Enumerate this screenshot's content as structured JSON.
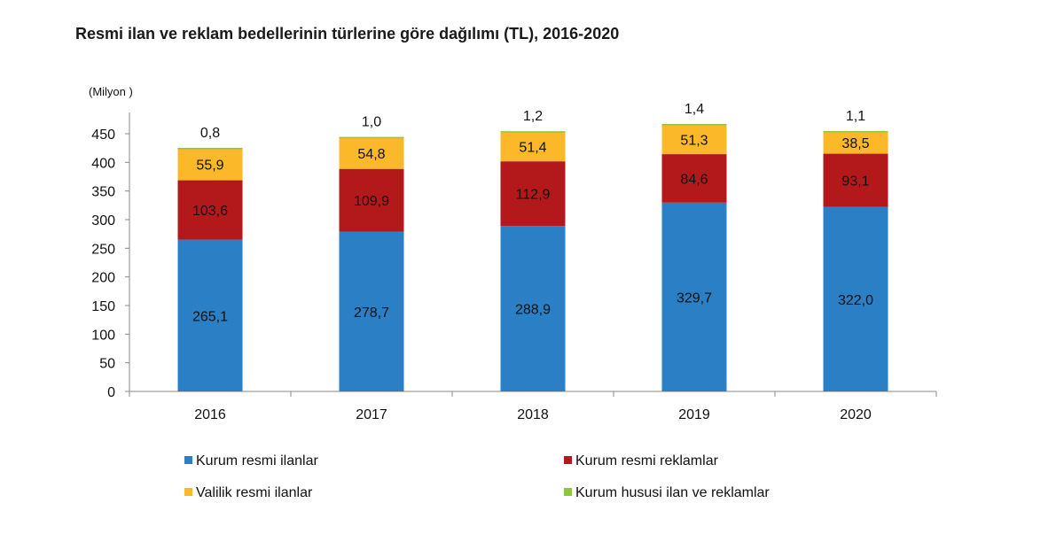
{
  "chart_data": {
    "type": "bar",
    "stacked": true,
    "title": "Resmi ilan ve reklam bedellerinin türlerine göre dağılımı (TL), 2016-2020",
    "ylabel": "(Milyon )",
    "xlabel": "",
    "ylim": [
      0,
      450
    ],
    "yticks": [
      0,
      50,
      100,
      150,
      200,
      250,
      300,
      350,
      400,
      450
    ],
    "categories": [
      "2016",
      "2017",
      "2018",
      "2019",
      "2020"
    ],
    "series": [
      {
        "name": "Kurum resmi ilanlar",
        "color": "#2a7fc5",
        "values": [
          265.1,
          278.7,
          288.9,
          329.7,
          322.0
        ],
        "labels": [
          "265,1",
          "278,7",
          "288,9",
          "329,7",
          "322,0"
        ]
      },
      {
        "name": "Kurum resmi reklamlar",
        "color": "#b3191b",
        "values": [
          103.6,
          109.9,
          112.9,
          84.6,
          93.1
        ],
        "labels": [
          "103,6",
          "109,9",
          "112,9",
          "84,6",
          "93,1"
        ]
      },
      {
        "name": "Valilik resmi ilanlar",
        "color": "#fbb829",
        "values": [
          55.9,
          54.8,
          51.4,
          51.3,
          38.5
        ],
        "labels": [
          "55,9",
          "54,8",
          "51,4",
          "51,3",
          "38,5"
        ]
      },
      {
        "name": "Kurum hususi ilan ve reklamlar",
        "color": "#8dc63f",
        "values": [
          0.8,
          1.0,
          1.2,
          1.4,
          1.1
        ],
        "labels": [
          "0,8",
          "1,0",
          "1,2",
          "1,4",
          "1,1"
        ]
      }
    ],
    "grid": false,
    "legend_position": "bottom"
  }
}
